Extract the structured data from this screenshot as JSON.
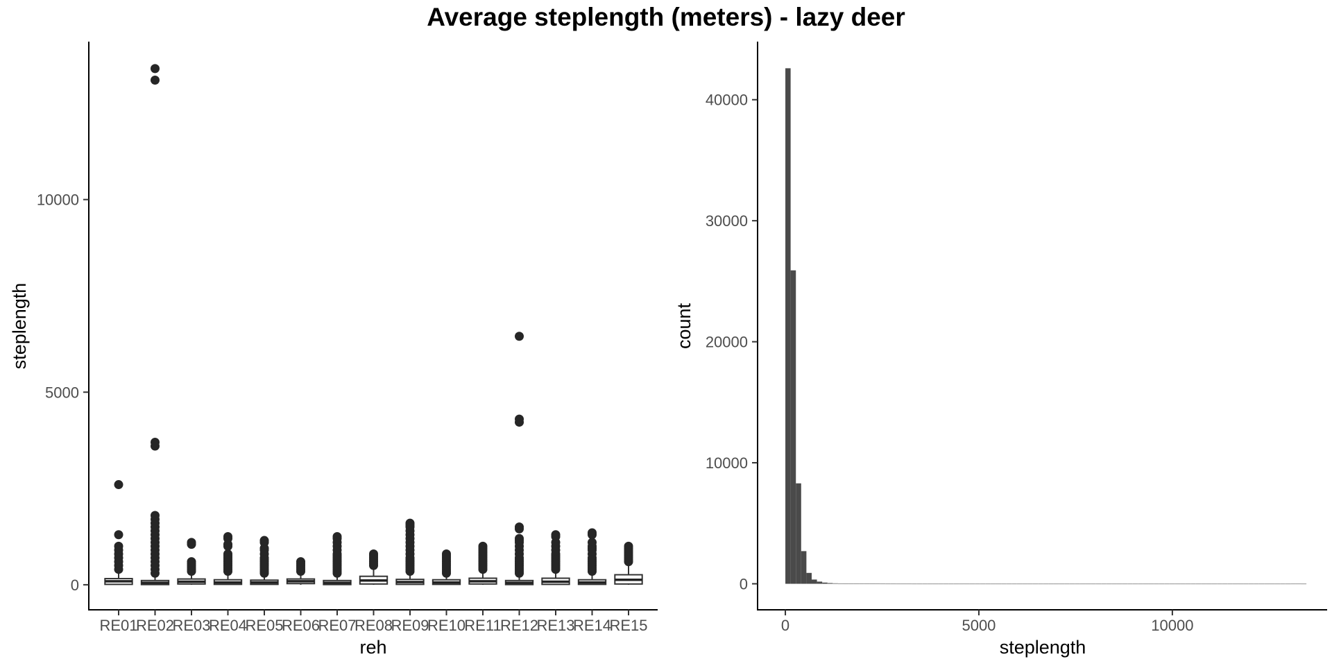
{
  "title": "Average steplength (meters) - lazy deer",
  "chart_data": [
    {
      "type": "boxplot",
      "xlabel": "reh",
      "ylabel": "steplength",
      "ylim": [
        -650,
        14100
      ],
      "yticks": [
        0,
        5000,
        10000
      ],
      "grid": false,
      "categories": [
        "RE01",
        "RE02",
        "RE03",
        "RE04",
        "RE05",
        "RE06",
        "RE07",
        "RE08",
        "RE09",
        "RE10",
        "RE11",
        "RE12",
        "RE13",
        "RE14",
        "RE15"
      ],
      "boxes": [
        {
          "q1": 10,
          "median": 90,
          "q3": 160,
          "whisker_low": 0,
          "whisker_high": 330,
          "outliers": [
            2600,
            1300,
            1000,
            900,
            800,
            700,
            600,
            500,
            400
          ]
        },
        {
          "q1": 5,
          "median": 50,
          "q3": 110,
          "whisker_low": 0,
          "whisker_high": 270,
          "outliers": [
            13400,
            13100,
            3700,
            3600,
            1800,
            1700,
            1600,
            1500,
            1400,
            1300,
            1200,
            1100,
            1000,
            900,
            800,
            700,
            600,
            500,
            400,
            300
          ]
        },
        {
          "q1": 20,
          "median": 80,
          "q3": 150,
          "whisker_low": 0,
          "whisker_high": 320,
          "outliers": [
            1100,
            1050,
            600,
            550,
            500,
            450,
            400,
            350
          ]
        },
        {
          "q1": 10,
          "median": 60,
          "q3": 130,
          "whisker_low": 0,
          "whisker_high": 300,
          "outliers": [
            1250,
            1200,
            1050,
            1000,
            800,
            750,
            700,
            650,
            600,
            550,
            500,
            450,
            400,
            350
          ]
        },
        {
          "q1": 10,
          "median": 60,
          "q3": 120,
          "whisker_low": 0,
          "whisker_high": 280,
          "outliers": [
            1150,
            1100,
            950,
            900,
            800,
            700,
            650,
            600,
            550,
            500,
            450,
            400,
            350,
            300
          ]
        },
        {
          "q1": 30,
          "median": 90,
          "q3": 150,
          "whisker_low": 0,
          "whisker_high": 320,
          "outliers": [
            600,
            550,
            500,
            450,
            400,
            350
          ]
        },
        {
          "q1": 5,
          "median": 50,
          "q3": 110,
          "whisker_low": 0,
          "whisker_high": 270,
          "outliers": [
            1250,
            1200,
            1100,
            1000,
            900,
            800,
            750,
            700,
            650,
            600,
            550,
            500,
            450,
            400,
            350,
            300
          ]
        },
        {
          "q1": 20,
          "median": 110,
          "q3": 220,
          "whisker_low": 0,
          "whisker_high": 480,
          "outliers": [
            800,
            750,
            700,
            650,
            600,
            550,
            500
          ]
        },
        {
          "q1": 10,
          "median": 70,
          "q3": 140,
          "whisker_low": 0,
          "whisker_high": 310,
          "outliers": [
            1600,
            1550,
            1500,
            1400,
            1300,
            1200,
            1100,
            1000,
            900,
            800,
            700,
            650,
            600,
            550,
            500,
            450,
            400,
            350
          ]
        },
        {
          "q1": 10,
          "median": 60,
          "q3": 130,
          "whisker_low": 0,
          "whisker_high": 290,
          "outliers": [
            800,
            750,
            700,
            650,
            600,
            550,
            500,
            450,
            400,
            350,
            300
          ]
        },
        {
          "q1": 20,
          "median": 90,
          "q3": 170,
          "whisker_low": 0,
          "whisker_high": 370,
          "outliers": [
            1000,
            950,
            900,
            850,
            800,
            750,
            700,
            650,
            600,
            550,
            500,
            450,
            400
          ]
        },
        {
          "q1": 5,
          "median": 50,
          "q3": 110,
          "whisker_low": 0,
          "whisker_high": 260,
          "outliers": [
            6450,
            4300,
            4220,
            1500,
            1450,
            1200,
            1150,
            1100,
            1000,
            900,
            800,
            700,
            650,
            600,
            550,
            500,
            450,
            400,
            350,
            300
          ]
        },
        {
          "q1": 10,
          "median": 80,
          "q3": 170,
          "whisker_low": 0,
          "whisker_high": 380,
          "outliers": [
            1300,
            1250,
            1100,
            1000,
            900,
            800,
            750,
            700,
            650,
            600,
            550,
            500,
            450,
            400
          ]
        },
        {
          "q1": 10,
          "median": 60,
          "q3": 130,
          "whisker_low": 0,
          "whisker_high": 300,
          "outliers": [
            1350,
            1300,
            1100,
            1000,
            950,
            900,
            800,
            700,
            650,
            600,
            550,
            500,
            450,
            400,
            350
          ]
        },
        {
          "q1": 20,
          "median": 130,
          "q3": 260,
          "whisker_low": 0,
          "whisker_high": 540,
          "outliers": [
            1000,
            950,
            900,
            850,
            800,
            750,
            700,
            650,
            600
          ]
        }
      ]
    },
    {
      "type": "bar",
      "subtype": "histogram",
      "xlabel": "steplength",
      "ylabel": "count",
      "xlim": [
        -700,
        14000
      ],
      "ylim": [
        -2150,
        44800
      ],
      "xticks": [
        0,
        5000,
        10000
      ],
      "yticks": [
        0,
        10000,
        20000,
        30000,
        40000
      ],
      "grid": false,
      "bin_width": 136,
      "bin_start": 0,
      "values": [
        42600,
        25900,
        8300,
        2700,
        900,
        350,
        180,
        100,
        60,
        40,
        30,
        20,
        15,
        12,
        10,
        8,
        6,
        5,
        4,
        3,
        3,
        2,
        2,
        2,
        1,
        1,
        1,
        1,
        1,
        1,
        1,
        1,
        1,
        1,
        1,
        1,
        1,
        1,
        1,
        1,
        1,
        1,
        1,
        1,
        1,
        1,
        1,
        1,
        1,
        1,
        1,
        1,
        1,
        1,
        1,
        1,
        1,
        1,
        1,
        1,
        1,
        1,
        1,
        1,
        1,
        1,
        1,
        1,
        1,
        1,
        1,
        1,
        1,
        1,
        1,
        1,
        1,
        1,
        1,
        1,
        1,
        1,
        1,
        1,
        1,
        1,
        1,
        1,
        1,
        1,
        1,
        1,
        1,
        1,
        1,
        1,
        2,
        2,
        1
      ]
    }
  ]
}
